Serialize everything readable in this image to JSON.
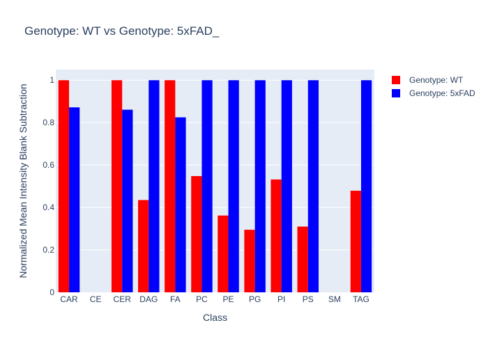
{
  "chart_data": {
    "type": "bar",
    "title": "Genotype: WT vs Genotype: 5xFAD_",
    "xlabel": "Class",
    "ylabel": "Normalized Mean Intensity Blank Subtraction",
    "ylim": [
      0,
      1.05
    ],
    "yticks": [
      0,
      0.2,
      0.4,
      0.6,
      0.8,
      1
    ],
    "ytick_labels": [
      "0",
      "0.2",
      "0.4",
      "0.6",
      "0.8",
      "1"
    ],
    "categories": [
      "CAR",
      "CE",
      "CER",
      "DAG",
      "FA",
      "PC",
      "PE",
      "PG",
      "PI",
      "PS",
      "SM",
      "TAG"
    ],
    "series": [
      {
        "name": "Genotype: WT",
        "color": "#ff0000",
        "values": [
          1,
          0,
          1,
          0.435,
          1,
          0.548,
          0.362,
          0.295,
          0.532,
          0.31,
          0,
          0.479
        ]
      },
      {
        "name": "Genotype: 5xFAD",
        "color": "#0000ff",
        "values": [
          0.872,
          0,
          0.861,
          1,
          0.825,
          1,
          1,
          1,
          1,
          1,
          0,
          1
        ]
      }
    ],
    "grid": true,
    "legend_position": "top-right",
    "plot_background": "#e5ecf6"
  }
}
